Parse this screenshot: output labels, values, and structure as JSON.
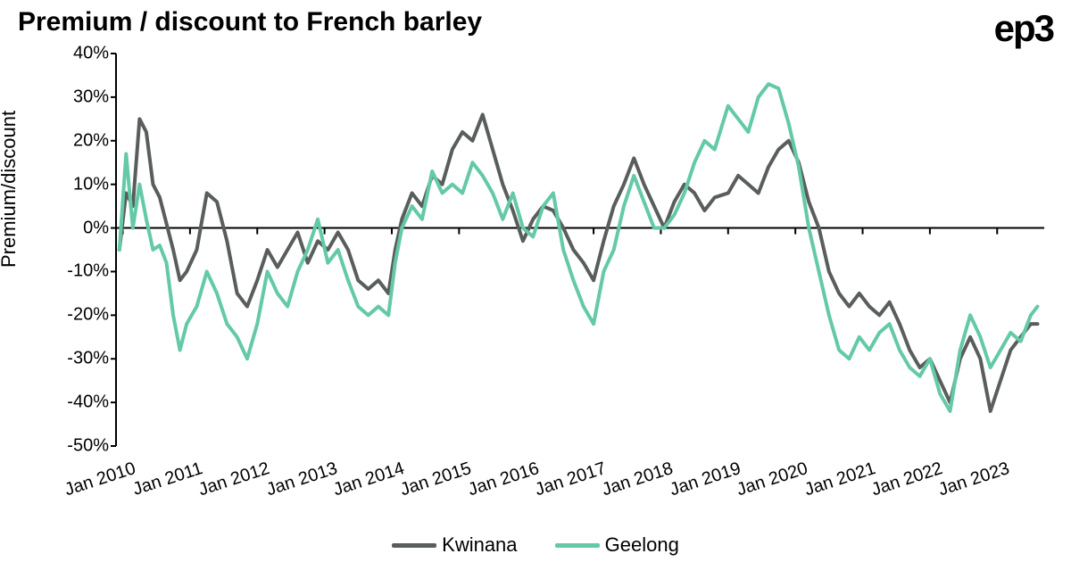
{
  "chart": {
    "type": "line",
    "title": "Premium / discount to French barley",
    "logo_text": "ep3",
    "ylabel": "Premium/discount",
    "title_fontsize": 30,
    "label_fontsize": 22,
    "tick_fontsize": 20,
    "background_color": "#ffffff",
    "axis_color": "#000000",
    "line_width": 4,
    "ylim": [
      -50,
      40
    ],
    "ytick_step": 10,
    "ytick_format": "percent",
    "yticks": [
      -50,
      -40,
      -30,
      -20,
      -10,
      0,
      10,
      20,
      30,
      40
    ],
    "x_start": 2009.9,
    "x_end": 2023.7,
    "xticks": [
      {
        "pos": 2010.0,
        "label": "Jan 2010"
      },
      {
        "pos": 2011.0,
        "label": "Jan 2011"
      },
      {
        "pos": 2012.0,
        "label": "Jan 2012"
      },
      {
        "pos": 2013.0,
        "label": "Jan 2013"
      },
      {
        "pos": 2014.0,
        "label": "Jan 2014"
      },
      {
        "pos": 2015.0,
        "label": "Jan 2015"
      },
      {
        "pos": 2016.0,
        "label": "Jan 2016"
      },
      {
        "pos": 2017.0,
        "label": "Jan 2017"
      },
      {
        "pos": 2018.0,
        "label": "Jan 2018"
      },
      {
        "pos": 2019.0,
        "label": "Jan 2019"
      },
      {
        "pos": 2020.0,
        "label": "Jan 2020"
      },
      {
        "pos": 2021.0,
        "label": "Jan 2021"
      },
      {
        "pos": 2022.0,
        "label": "Jan 2022"
      },
      {
        "pos": 2023.0,
        "label": "Jan 2023"
      }
    ],
    "series": [
      {
        "name": "Kwinana",
        "color": "#595d5d",
        "points": [
          [
            2009.95,
            -5
          ],
          [
            2010.05,
            8
          ],
          [
            2010.15,
            5
          ],
          [
            2010.25,
            25
          ],
          [
            2010.35,
            22
          ],
          [
            2010.45,
            10
          ],
          [
            2010.55,
            7
          ],
          [
            2010.65,
            1
          ],
          [
            2010.75,
            -5
          ],
          [
            2010.85,
            -12
          ],
          [
            2010.95,
            -10
          ],
          [
            2011.1,
            -5
          ],
          [
            2011.25,
            8
          ],
          [
            2011.4,
            6
          ],
          [
            2011.55,
            -3
          ],
          [
            2011.7,
            -15
          ],
          [
            2011.85,
            -18
          ],
          [
            2012.0,
            -12
          ],
          [
            2012.15,
            -5
          ],
          [
            2012.3,
            -9
          ],
          [
            2012.45,
            -5
          ],
          [
            2012.6,
            -1
          ],
          [
            2012.75,
            -8
          ],
          [
            2012.9,
            -3
          ],
          [
            2013.05,
            -5
          ],
          [
            2013.2,
            -1
          ],
          [
            2013.35,
            -5
          ],
          [
            2013.5,
            -12
          ],
          [
            2013.65,
            -14
          ],
          [
            2013.8,
            -12
          ],
          [
            2013.95,
            -15
          ],
          [
            2014.05,
            -5
          ],
          [
            2014.15,
            2
          ],
          [
            2014.3,
            8
          ],
          [
            2014.45,
            5
          ],
          [
            2014.6,
            12
          ],
          [
            2014.75,
            10
          ],
          [
            2014.9,
            18
          ],
          [
            2015.05,
            22
          ],
          [
            2015.2,
            20
          ],
          [
            2015.35,
            26
          ],
          [
            2015.5,
            18
          ],
          [
            2015.65,
            10
          ],
          [
            2015.8,
            4
          ],
          [
            2015.95,
            -3
          ],
          [
            2016.1,
            2
          ],
          [
            2016.25,
            5
          ],
          [
            2016.4,
            4
          ],
          [
            2016.55,
            0
          ],
          [
            2016.7,
            -5
          ],
          [
            2016.85,
            -8
          ],
          [
            2017.0,
            -12
          ],
          [
            2017.15,
            -3
          ],
          [
            2017.3,
            5
          ],
          [
            2017.45,
            10
          ],
          [
            2017.6,
            16
          ],
          [
            2017.75,
            10
          ],
          [
            2017.9,
            5
          ],
          [
            2018.05,
            0
          ],
          [
            2018.2,
            6
          ],
          [
            2018.35,
            10
          ],
          [
            2018.5,
            8
          ],
          [
            2018.65,
            4
          ],
          [
            2018.8,
            7
          ],
          [
            2019.0,
            8
          ],
          [
            2019.15,
            12
          ],
          [
            2019.3,
            10
          ],
          [
            2019.45,
            8
          ],
          [
            2019.6,
            14
          ],
          [
            2019.75,
            18
          ],
          [
            2019.9,
            20
          ],
          [
            2020.05,
            15
          ],
          [
            2020.2,
            6
          ],
          [
            2020.35,
            0
          ],
          [
            2020.5,
            -10
          ],
          [
            2020.65,
            -15
          ],
          [
            2020.8,
            -18
          ],
          [
            2020.95,
            -15
          ],
          [
            2021.1,
            -18
          ],
          [
            2021.25,
            -20
          ],
          [
            2021.4,
            -17
          ],
          [
            2021.55,
            -22
          ],
          [
            2021.7,
            -28
          ],
          [
            2021.85,
            -32
          ],
          [
            2022.0,
            -30
          ],
          [
            2022.15,
            -35
          ],
          [
            2022.3,
            -40
          ],
          [
            2022.45,
            -30
          ],
          [
            2022.6,
            -25
          ],
          [
            2022.75,
            -30
          ],
          [
            2022.9,
            -42
          ],
          [
            2023.05,
            -35
          ],
          [
            2023.2,
            -28
          ],
          [
            2023.35,
            -25
          ],
          [
            2023.5,
            -22
          ],
          [
            2023.6,
            -22
          ]
        ]
      },
      {
        "name": "Geelong",
        "color": "#64c9a6",
        "points": [
          [
            2009.95,
            -5
          ],
          [
            2010.05,
            17
          ],
          [
            2010.15,
            0
          ],
          [
            2010.25,
            10
          ],
          [
            2010.35,
            2
          ],
          [
            2010.45,
            -5
          ],
          [
            2010.55,
            -4
          ],
          [
            2010.65,
            -8
          ],
          [
            2010.75,
            -20
          ],
          [
            2010.85,
            -28
          ],
          [
            2010.95,
            -22
          ],
          [
            2011.1,
            -18
          ],
          [
            2011.25,
            -10
          ],
          [
            2011.4,
            -15
          ],
          [
            2011.55,
            -22
          ],
          [
            2011.7,
            -25
          ],
          [
            2011.85,
            -30
          ],
          [
            2012.0,
            -22
          ],
          [
            2012.15,
            -10
          ],
          [
            2012.3,
            -15
          ],
          [
            2012.45,
            -18
          ],
          [
            2012.6,
            -10
          ],
          [
            2012.75,
            -5
          ],
          [
            2012.9,
            2
          ],
          [
            2013.05,
            -8
          ],
          [
            2013.2,
            -5
          ],
          [
            2013.35,
            -12
          ],
          [
            2013.5,
            -18
          ],
          [
            2013.65,
            -20
          ],
          [
            2013.8,
            -18
          ],
          [
            2013.95,
            -20
          ],
          [
            2014.05,
            -8
          ],
          [
            2014.15,
            0
          ],
          [
            2014.3,
            5
          ],
          [
            2014.45,
            2
          ],
          [
            2014.6,
            13
          ],
          [
            2014.75,
            8
          ],
          [
            2014.9,
            10
          ],
          [
            2015.05,
            8
          ],
          [
            2015.2,
            15
          ],
          [
            2015.35,
            12
          ],
          [
            2015.5,
            8
          ],
          [
            2015.65,
            2
          ],
          [
            2015.8,
            8
          ],
          [
            2015.95,
            0
          ],
          [
            2016.1,
            -2
          ],
          [
            2016.25,
            5
          ],
          [
            2016.4,
            8
          ],
          [
            2016.55,
            -5
          ],
          [
            2016.7,
            -12
          ],
          [
            2016.85,
            -18
          ],
          [
            2017.0,
            -22
          ],
          [
            2017.15,
            -10
          ],
          [
            2017.3,
            -5
          ],
          [
            2017.45,
            5
          ],
          [
            2017.6,
            12
          ],
          [
            2017.75,
            6
          ],
          [
            2017.9,
            0
          ],
          [
            2018.05,
            0
          ],
          [
            2018.2,
            3
          ],
          [
            2018.35,
            8
          ],
          [
            2018.5,
            15
          ],
          [
            2018.65,
            20
          ],
          [
            2018.8,
            18
          ],
          [
            2019.0,
            28
          ],
          [
            2019.15,
            25
          ],
          [
            2019.3,
            22
          ],
          [
            2019.45,
            30
          ],
          [
            2019.6,
            33
          ],
          [
            2019.75,
            32
          ],
          [
            2019.9,
            24
          ],
          [
            2020.05,
            14
          ],
          [
            2020.2,
            0
          ],
          [
            2020.35,
            -10
          ],
          [
            2020.5,
            -20
          ],
          [
            2020.65,
            -28
          ],
          [
            2020.8,
            -30
          ],
          [
            2020.95,
            -25
          ],
          [
            2021.1,
            -28
          ],
          [
            2021.25,
            -24
          ],
          [
            2021.4,
            -22
          ],
          [
            2021.55,
            -28
          ],
          [
            2021.7,
            -32
          ],
          [
            2021.85,
            -34
          ],
          [
            2022.0,
            -30
          ],
          [
            2022.15,
            -38
          ],
          [
            2022.3,
            -42
          ],
          [
            2022.45,
            -28
          ],
          [
            2022.6,
            -20
          ],
          [
            2022.75,
            -25
          ],
          [
            2022.9,
            -32
          ],
          [
            2023.05,
            -28
          ],
          [
            2023.2,
            -24
          ],
          [
            2023.35,
            -26
          ],
          [
            2023.5,
            -20
          ],
          [
            2023.6,
            -18
          ]
        ]
      }
    ]
  }
}
